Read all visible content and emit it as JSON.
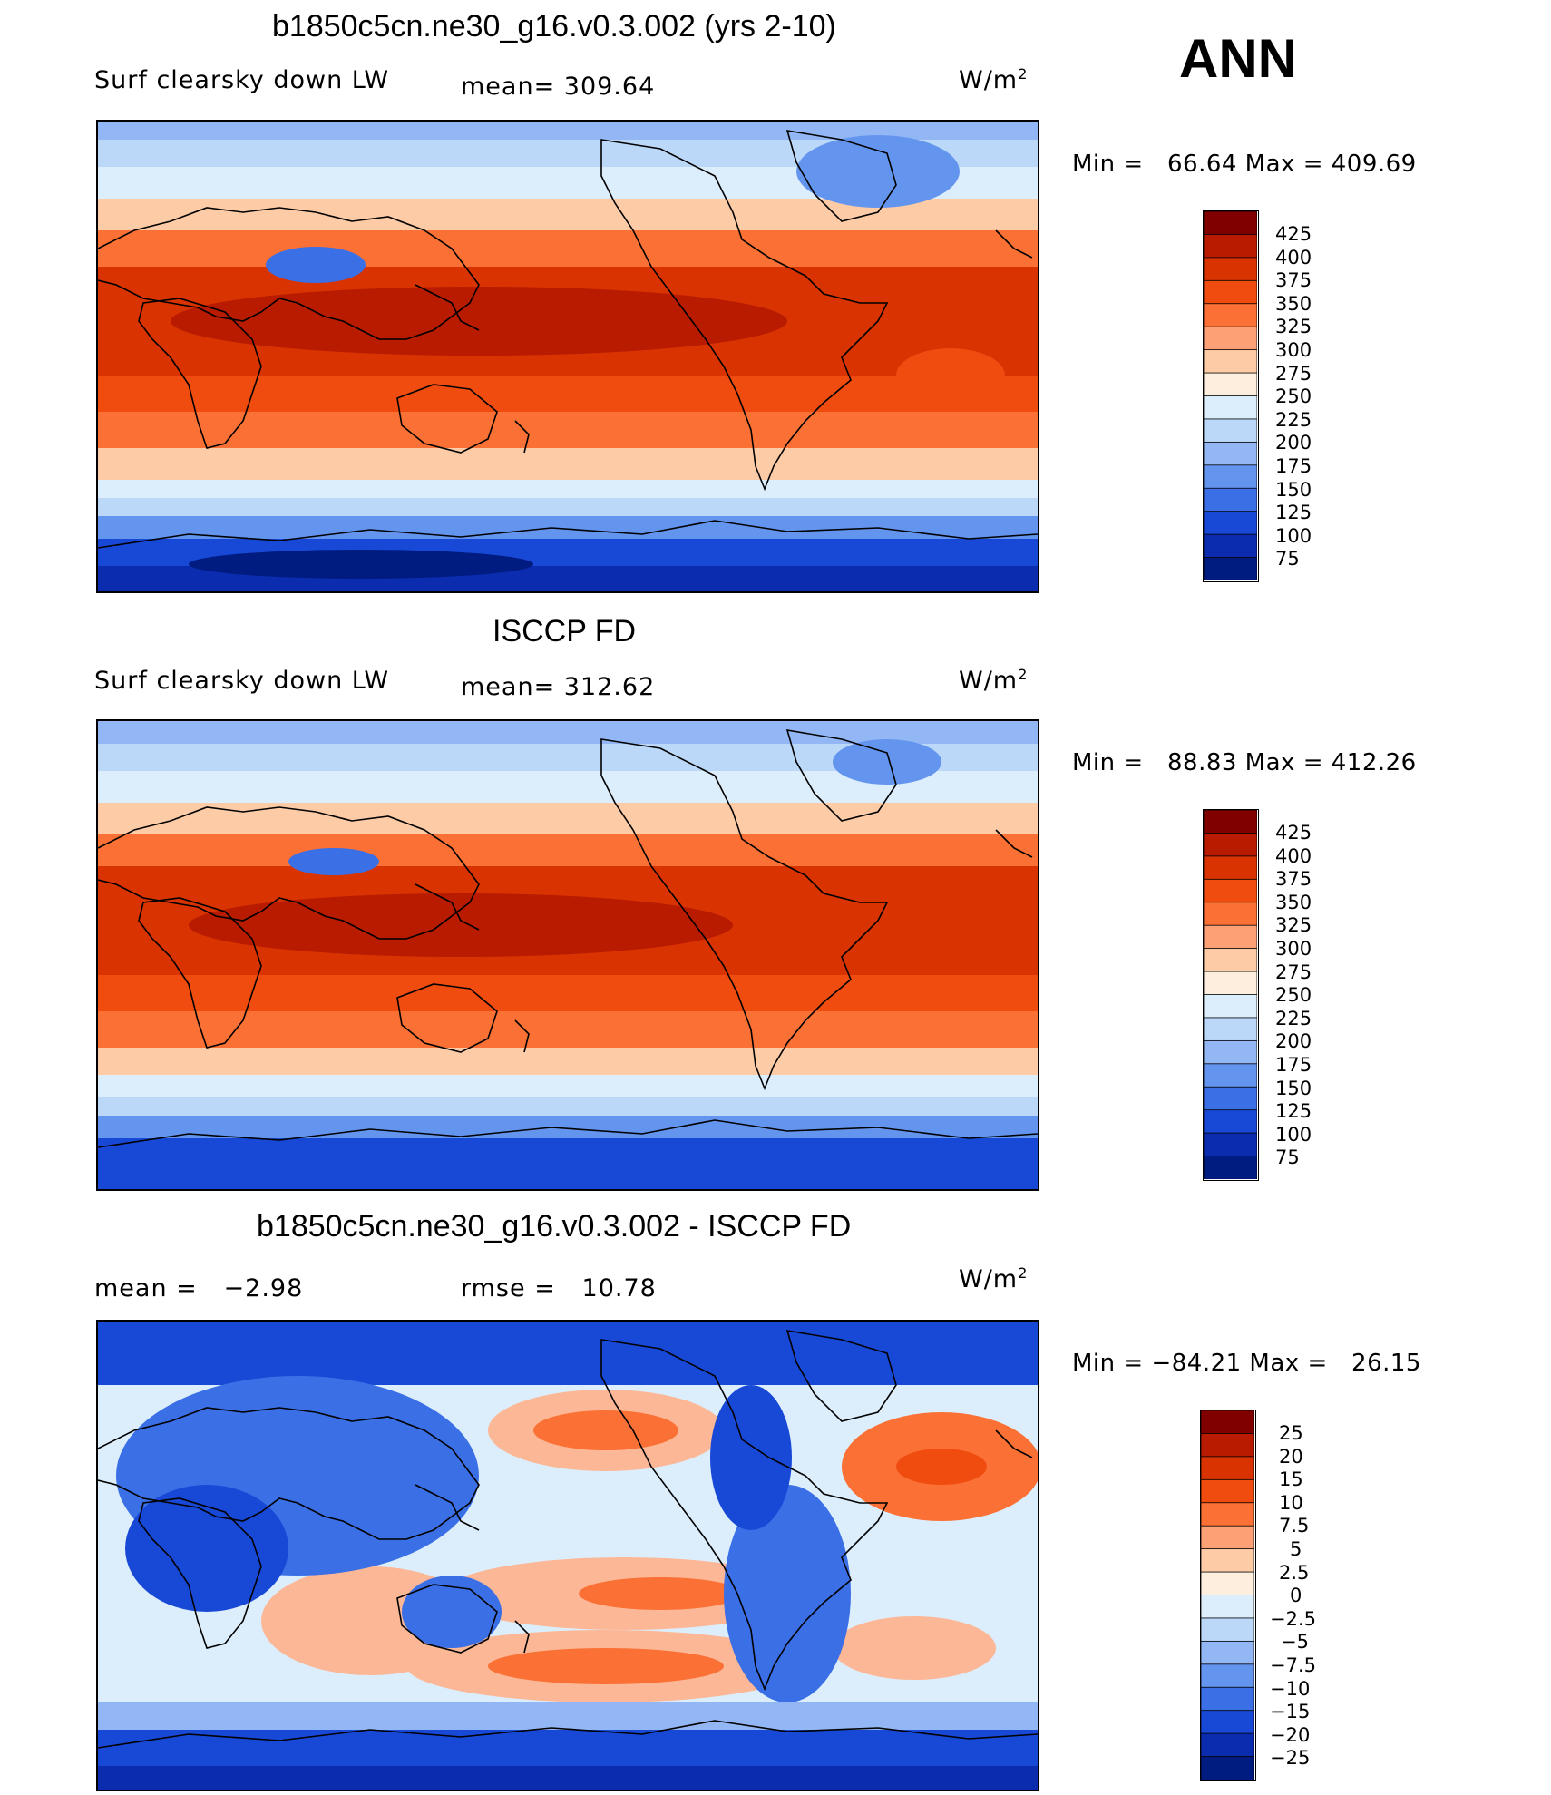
{
  "season": "ANN",
  "panels": [
    {
      "title": "b1850c5cn.ne30_g16.v0.3.002 (yrs 2-10)",
      "left_label": "Surf clearsky down LW",
      "center_label": "mean= 309.64",
      "units": "W/m",
      "units_sup": "2",
      "minmax": "Min =   66.64 Max = 409.69",
      "colorbar_labels": [
        "425",
        "400",
        "375",
        "350",
        "325",
        "300",
        "275",
        "250",
        "225",
        "200",
        "175",
        "150",
        "125",
        "100",
        "75"
      ]
    },
    {
      "title": "ISCCP FD",
      "left_label": "Surf clearsky down LW",
      "center_label": "mean= 312.62",
      "units": "W/m",
      "units_sup": "2",
      "minmax": "Min =   88.83 Max = 412.26",
      "colorbar_labels": [
        "425",
        "400",
        "375",
        "350",
        "325",
        "300",
        "275",
        "250",
        "225",
        "200",
        "175",
        "150",
        "125",
        "100",
        "75"
      ]
    },
    {
      "title": "b1850c5cn.ne30_g16.v0.3.002 - ISCCP FD",
      "left_label": "mean =   −2.98",
      "center_label": "rmse =   10.78",
      "units": "W/m",
      "units_sup": "2",
      "minmax": "Min = −84.21 Max =   26.15",
      "colorbar_labels": [
        "25",
        "20",
        "15",
        "10",
        "7.5",
        "5",
        "2.5",
        "0",
        "−2.5",
        "−5",
        "−7.5",
        "−10",
        "−15",
        "−20",
        "−25"
      ]
    }
  ],
  "colors": {
    "scale": [
      "#800000",
      "#b81b00",
      "#d83300",
      "#f04c10",
      "#fa7035",
      "#fca076",
      "#fdcba6",
      "#fdeedd",
      "#dceefc",
      "#bcd8f8",
      "#93b7f4",
      "#6495ee",
      "#3a6fe6",
      "#1848d6",
      "#0b2cae",
      "#001c80"
    ]
  }
}
